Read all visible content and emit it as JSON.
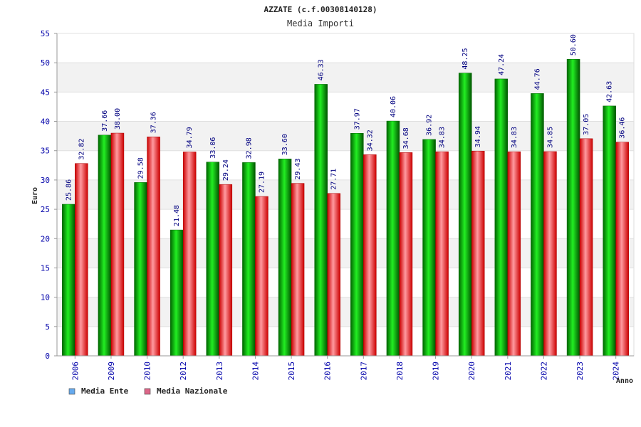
{
  "chart_data": {
    "type": "bar",
    "title": "AZZATE (c.f.00308140128)",
    "subtitle": "Media Importi",
    "xlabel": "Anno",
    "ylabel": "Euro",
    "ylim": [
      0,
      55
    ],
    "yticks": [
      0,
      5,
      10,
      15,
      20,
      25,
      30,
      35,
      40,
      45,
      50,
      55
    ],
    "grid": true,
    "legend_position": "bottom-left",
    "categories": [
      "2006",
      "2009",
      "2010",
      "2012",
      "2013",
      "2014",
      "2015",
      "2016",
      "2017",
      "2018",
      "2019",
      "2020",
      "2021",
      "2022",
      "2023",
      "2024"
    ],
    "series": [
      {
        "name": "Media Ente",
        "color": "#00aa00",
        "legend_color": "#66aaee",
        "values": [
          25.86,
          37.66,
          29.58,
          21.48,
          33.06,
          32.98,
          33.6,
          46.33,
          37.97,
          40.06,
          36.92,
          48.25,
          47.24,
          44.76,
          50.6,
          42.63
        ],
        "labels": [
          "25.86",
          "37.66",
          "29.58",
          "21.48",
          "33.06",
          "32.98",
          "33.60",
          "46.33",
          "37.97",
          "40.06",
          "36.92",
          "48.25",
          "47.24",
          "44.76",
          "50.60",
          "42.63"
        ]
      },
      {
        "name": "Media Nazionale",
        "color": "#dd0000",
        "legend_color": "#dd6688",
        "values": [
          32.82,
          38.0,
          37.36,
          34.79,
          29.24,
          27.19,
          29.43,
          27.71,
          34.32,
          34.68,
          34.83,
          34.94,
          34.83,
          34.85,
          37.05,
          36.46
        ],
        "labels": [
          "32.82",
          "38.00",
          "37.36",
          "34.79",
          "29.24",
          "27.19",
          "29.43",
          "27.71",
          "34.32",
          "34.68",
          "34.83",
          "34.94",
          "34.83",
          "34.85",
          "37.05",
          "36.46"
        ]
      }
    ]
  }
}
